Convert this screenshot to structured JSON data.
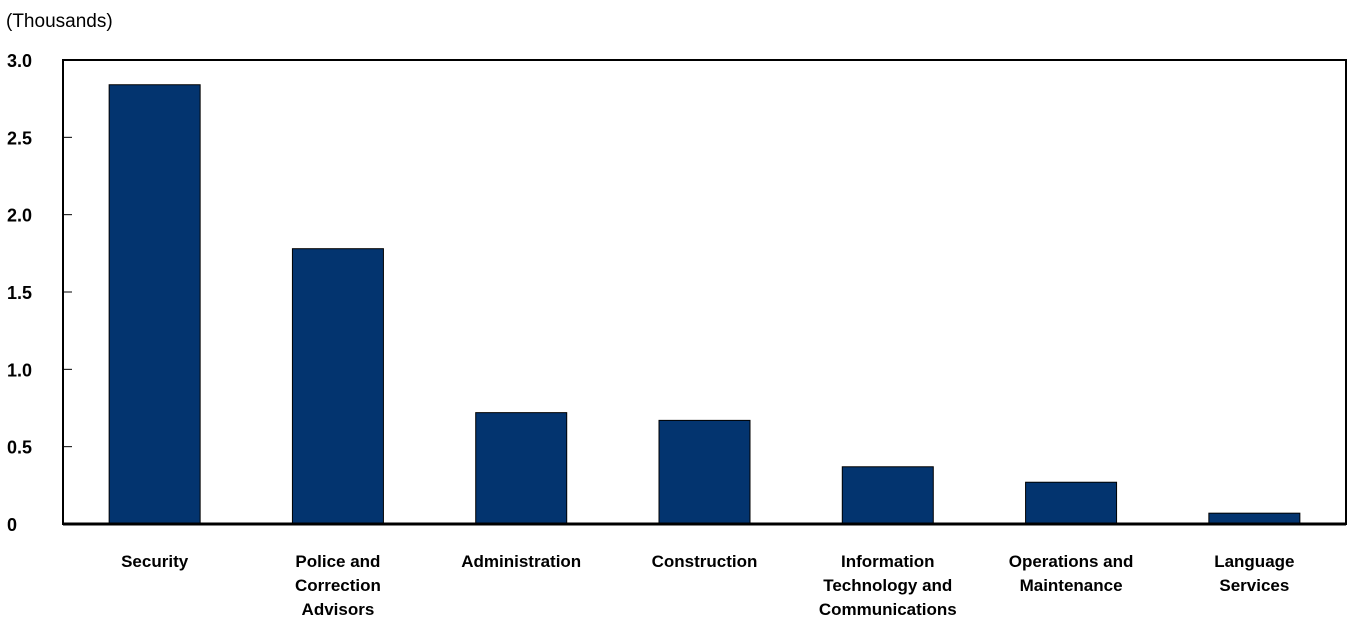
{
  "chart_data": {
    "type": "bar",
    "title": "",
    "unit_label": "(Thousands)",
    "xlabel": "",
    "ylabel": "",
    "ylim": [
      0,
      3.0
    ],
    "yticks": [
      {
        "value": 0,
        "label": "0"
      },
      {
        "value": 0.5,
        "label": "0.5"
      },
      {
        "value": 1.0,
        "label": "1.0"
      },
      {
        "value": 1.5,
        "label": "1.5"
      },
      {
        "value": 2.0,
        "label": "2.0"
      },
      {
        "value": 2.5,
        "label": "2.5"
      },
      {
        "value": 3.0,
        "label": "3.0"
      }
    ],
    "categories": [
      [
        "Security"
      ],
      [
        "Police and",
        "Correction",
        "Advisors"
      ],
      [
        "Administration"
      ],
      [
        "Construction"
      ],
      [
        "Information",
        "Technology and",
        "Communications"
      ],
      [
        "Operations and",
        "Maintenance"
      ],
      [
        "Language",
        "Services"
      ]
    ],
    "values": [
      2.84,
      1.78,
      0.72,
      0.67,
      0.37,
      0.27,
      0.07
    ],
    "bar_color": "#03346F",
    "grid": false,
    "legend": "none"
  }
}
